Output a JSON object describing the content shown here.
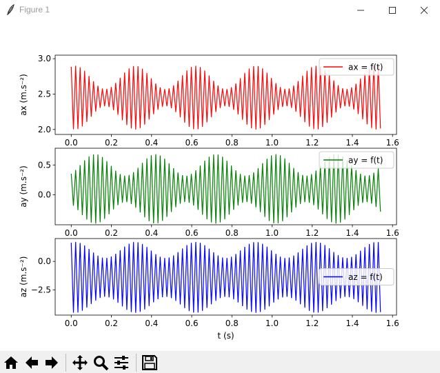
{
  "window": {
    "title": "Figure 1"
  },
  "colors": {
    "ax": "#ff0000",
    "ay": "#008000",
    "az": "#0000ff"
  },
  "toolbar": {
    "items": [
      {
        "name": "home-icon"
      },
      {
        "name": "back-arrow-icon"
      },
      {
        "name": "forward-arrow-icon"
      },
      {
        "name": "pan-icon"
      },
      {
        "name": "zoom-icon"
      },
      {
        "name": "configure-subplots-icon"
      },
      {
        "name": "save-icon"
      }
    ]
  },
  "chart_data": [
    {
      "type": "line",
      "ylabel": "ax (m.s⁻²)",
      "legend": "ax = f(t)",
      "legend_position": "upper right",
      "xlim": [
        -0.08,
        1.62
      ],
      "ylim": [
        1.93,
        3.05
      ],
      "xticks": [
        "0.0",
        "0.2",
        "0.4",
        "0.6",
        "0.8",
        "1.0",
        "1.2",
        "1.4",
        "1.6"
      ],
      "yticks": [
        {
          "v": 2.0,
          "label": "2.0"
        },
        {
          "v": 2.5,
          "label": "2.5"
        },
        {
          "v": 3.0,
          "label": "3.0"
        }
      ],
      "signal": {
        "t_start": 0.0,
        "t_end": 1.54,
        "samples": 140,
        "mean": 2.45,
        "amplitude_min": 0.12,
        "amplitude_max": 0.45,
        "envelope_period": 0.3,
        "envelope_peak_t": 0.02
      },
      "extent": {
        "min": 1.98,
        "max": 2.98
      }
    },
    {
      "type": "line",
      "ylabel": "ay (m.s⁻²)",
      "legend": "ay = f(t)",
      "legend_position": "upper right",
      "xlim": [
        -0.08,
        1.62
      ],
      "ylim": [
        -0.5,
        0.78
      ],
      "xticks": [
        "0.0",
        "0.2",
        "0.4",
        "0.6",
        "0.8",
        "1.0",
        "1.2",
        "1.4",
        "1.6"
      ],
      "yticks": [
        {
          "v": 0.0,
          "label": "0.0"
        },
        {
          "v": 0.5,
          "label": "0.5"
        }
      ],
      "signal": {
        "t_start": 0.0,
        "t_end": 1.54,
        "samples": 140,
        "mean": 0.1,
        "amplitude_min": 0.22,
        "amplitude_max": 0.58,
        "envelope_period": 0.3,
        "envelope_peak_t": 0.12
      },
      "extent": {
        "min": -0.43,
        "max": 0.68
      }
    },
    {
      "type": "line",
      "ylabel": "az (m.s⁻²)",
      "legend": "az = f(t)",
      "legend_position": "center right",
      "xlabel": "t (s)",
      "xlim": [
        -0.08,
        1.62
      ],
      "ylim": [
        -4.7,
        2.0
      ],
      "xticks": [
        "0.0",
        "0.2",
        "0.4",
        "0.6",
        "0.8",
        "1.0",
        "1.2",
        "1.4",
        "1.6"
      ],
      "yticks": [
        {
          "v": 0.0,
          "label": "0.0"
        },
        {
          "v": -2.5,
          "label": "−2.5"
        }
      ],
      "signal": {
        "t_start": 0.0,
        "t_end": 1.54,
        "samples": 140,
        "mean": -1.4,
        "amplitude_min": 1.7,
        "amplitude_max": 3.1,
        "envelope_period": 0.3,
        "envelope_peak_t": 0.02
      },
      "extent": {
        "min": -4.5,
        "max": 1.3
      }
    }
  ]
}
